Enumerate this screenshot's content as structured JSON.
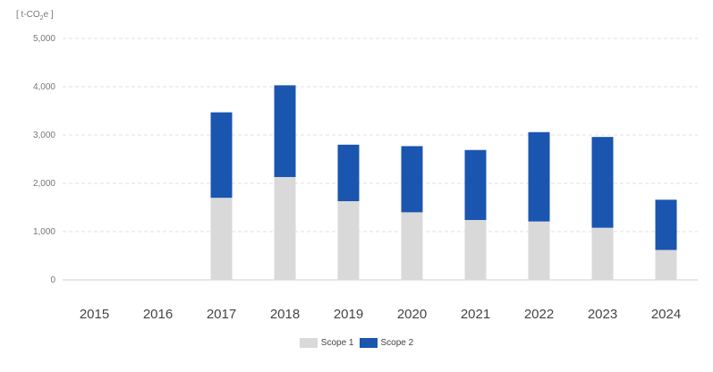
{
  "chart_data": {
    "type": "bar",
    "stacked": true,
    "unit_label": {
      "prefix": "[ t-CO",
      "subscript": "2",
      "suffix": "e ]"
    },
    "categories": [
      "2015",
      "2016",
      "2017",
      "2018",
      "2019",
      "2020",
      "2021",
      "2022",
      "2023",
      "2024"
    ],
    "series": [
      {
        "name": "Scope 1",
        "color": "#d9d9d9",
        "values": [
          null,
          null,
          1700,
          2130,
          1630,
          1400,
          1240,
          1210,
          1080,
          620
        ]
      },
      {
        "name": "Scope 2",
        "color": "#1a55b0",
        "values": [
          null,
          null,
          1770,
          1900,
          1170,
          1370,
          1450,
          1850,
          1880,
          1040
        ]
      }
    ],
    "ylim": [
      0,
      5000
    ],
    "yticks": [
      "0",
      "1,000",
      "2,000",
      "3,000",
      "4,000",
      "5,000"
    ],
    "ytick_values": [
      0,
      1000,
      2000,
      3000,
      4000,
      5000
    ],
    "grid": true,
    "legend_position": "bottom"
  }
}
